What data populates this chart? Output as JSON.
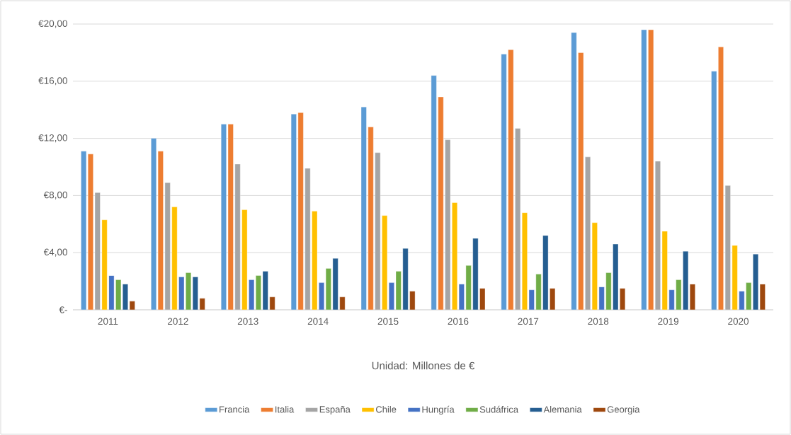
{
  "chart_data": {
    "type": "bar",
    "xlabel": "Unidad: Millones de €",
    "categories": [
      "2011",
      "2012",
      "2013",
      "2014",
      "2015",
      "2016",
      "2017",
      "2018",
      "2019",
      "2020"
    ],
    "series": [
      {
        "name": "Francia",
        "color": "#5b9bd5",
        "values": [
          11.1,
          12.0,
          13.0,
          13.7,
          14.2,
          16.4,
          17.9,
          19.4,
          19.6,
          16.7
        ]
      },
      {
        "name": "Italia",
        "color": "#ed7d31",
        "values": [
          10.9,
          11.1,
          13.0,
          13.8,
          12.8,
          14.9,
          18.2,
          18.0,
          19.6,
          18.4
        ]
      },
      {
        "name": "España",
        "color": "#a5a5a5",
        "values": [
          8.2,
          8.9,
          10.2,
          9.9,
          11.0,
          11.9,
          12.7,
          10.7,
          10.4,
          8.7
        ]
      },
      {
        "name": "Chile",
        "color": "#ffc000",
        "values": [
          6.3,
          7.2,
          7.0,
          6.9,
          6.6,
          7.5,
          6.8,
          6.1,
          5.5,
          4.5
        ]
      },
      {
        "name": "Hungría",
        "color": "#4472c4",
        "values": [
          2.4,
          2.3,
          2.1,
          1.9,
          1.9,
          1.8,
          1.4,
          1.6,
          1.4,
          1.3
        ]
      },
      {
        "name": "Sudáfrica",
        "color": "#70ad47",
        "values": [
          2.1,
          2.6,
          2.4,
          2.9,
          2.7,
          3.1,
          2.5,
          2.6,
          2.1,
          1.9
        ]
      },
      {
        "name": "Alemania",
        "color": "#255e91",
        "values": [
          1.8,
          2.3,
          2.7,
          3.6,
          4.3,
          5.0,
          5.2,
          4.6,
          4.1,
          3.9
        ]
      },
      {
        "name": "Georgia",
        "color": "#9e480e",
        "values": [
          0.6,
          0.8,
          0.9,
          0.9,
          1.3,
          1.5,
          1.5,
          1.5,
          1.8,
          1.8
        ]
      }
    ],
    "ylim": [
      0,
      20
    ],
    "yticks": [
      {
        "value": 0,
        "label": "€-"
      },
      {
        "value": 4,
        "label": "€4,00"
      },
      {
        "value": 8,
        "label": "€8,00"
      },
      {
        "value": 12,
        "label": "€12,00"
      },
      {
        "value": 16,
        "label": "€16,00"
      },
      {
        "value": 20,
        "label": "€20,00"
      }
    ],
    "grid": "y",
    "legend": "bottom"
  }
}
